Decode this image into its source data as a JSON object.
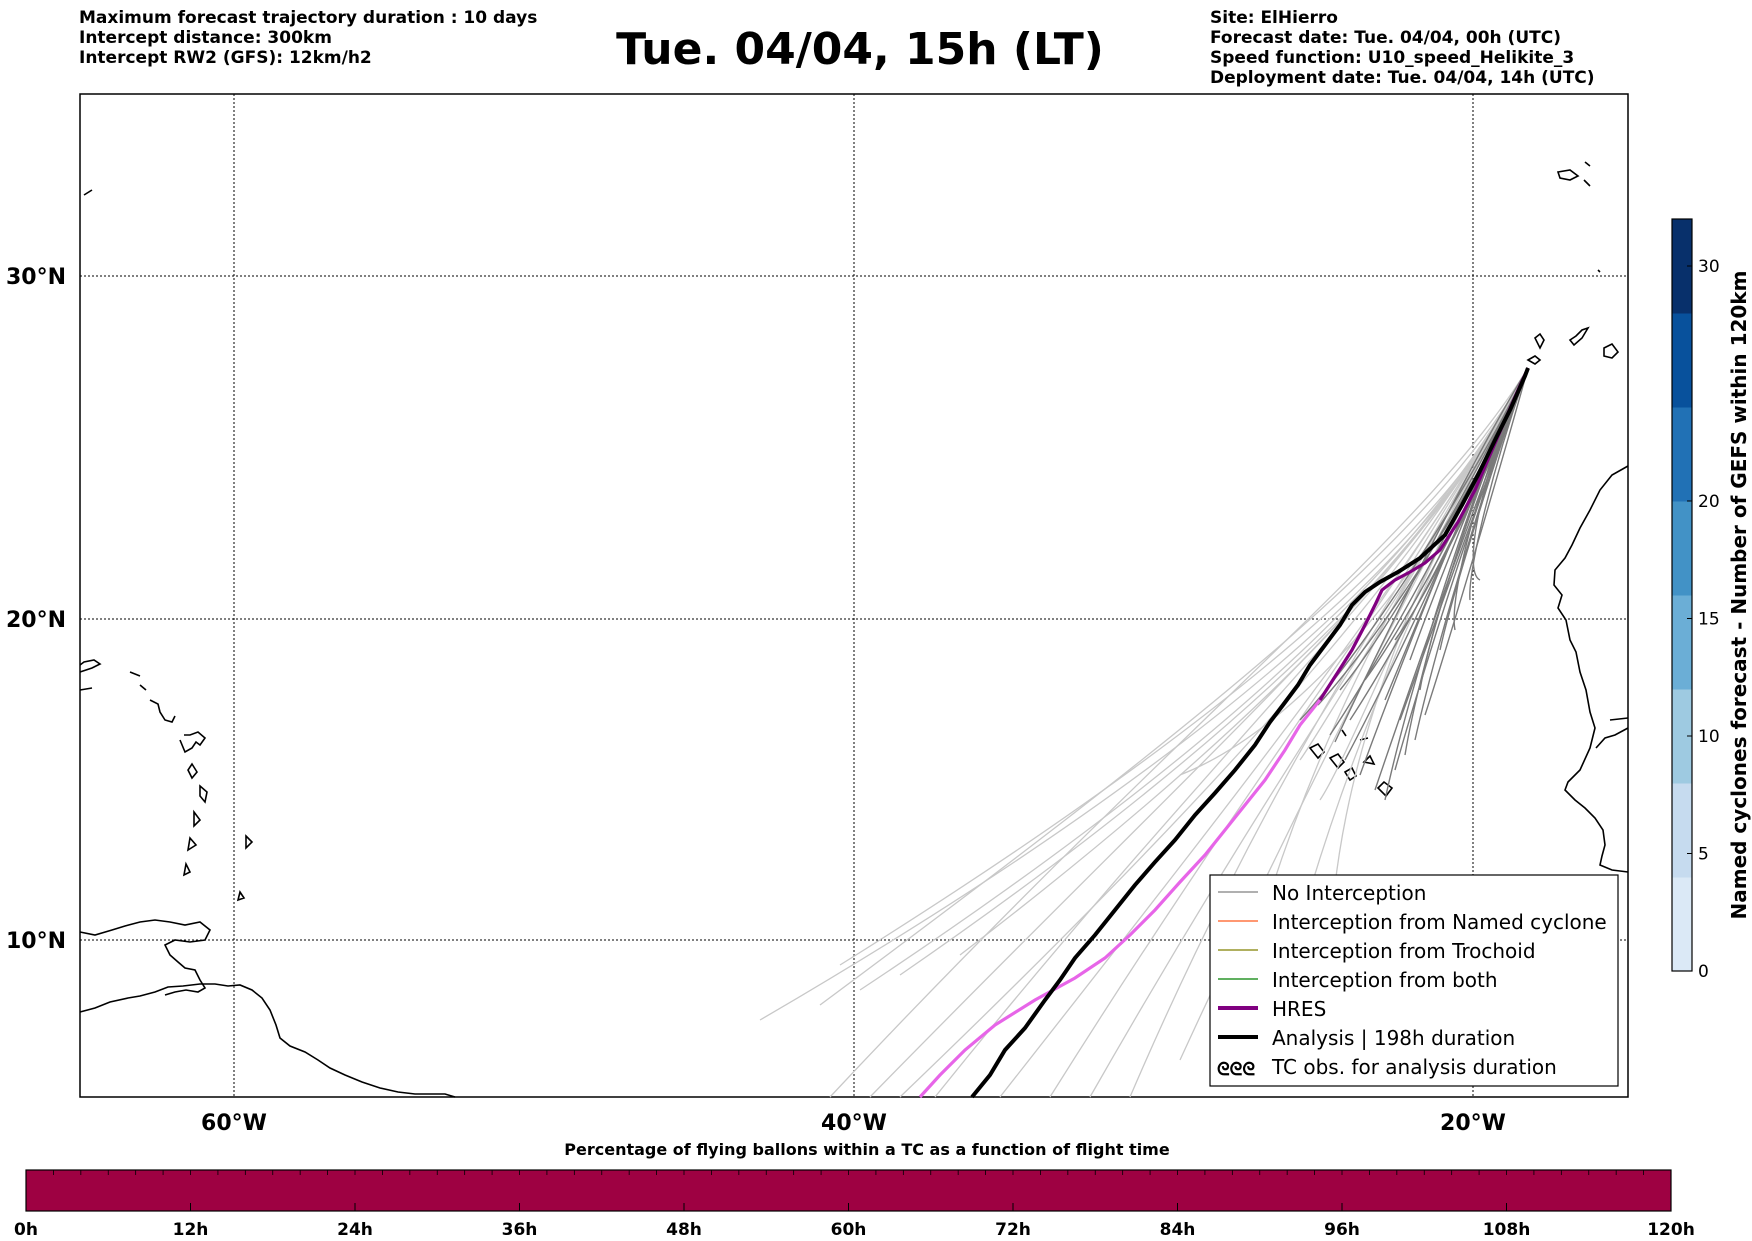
{
  "header": {
    "left_lines": [
      "Maximum forecast trajectory duration : 10 days",
      "Intercept distance: 300km",
      "Intercept RW2 (GFS):  12km/h2"
    ],
    "title": "Tue. 04/04, 15h (LT)",
    "right_lines": [
      "Site: ElHierro",
      "Forecast date: Tue. 04/04, 00h (UTC)",
      "Speed function: U10_speed_Helikite_3",
      "Deployment date: Tue. 04/04, 14h (UTC)"
    ]
  },
  "map": {
    "lat_labels": [
      "30°N",
      "20°N",
      "10°N"
    ],
    "lon_labels": [
      "60°W",
      "40°W",
      "20°W"
    ],
    "lat_range": [
      5,
      35
    ],
    "lon_range": [
      -65,
      -15
    ]
  },
  "legend": {
    "items": [
      {
        "label": "No Interception",
        "color": "#808080"
      },
      {
        "label": "Interception from Named cyclone",
        "color": "#ff5a1e"
      },
      {
        "label": "Interception from Trochoid",
        "color": "#808000"
      },
      {
        "label": "Interception from both",
        "color": "#008000"
      },
      {
        "label": "HRES",
        "color": "#800080"
      },
      {
        "label": "Analysis | 198h duration",
        "color": "#000000"
      },
      {
        "label": "TC obs. for analysis duration",
        "color": "#000000"
      }
    ],
    "tc_symbol": "ᘓᘓᘓ"
  },
  "colorbar_right": {
    "label": "Named cyclones forecast - Number of GEFS within 120km",
    "ticks": [
      "0",
      "5",
      "10",
      "15",
      "20",
      "30"
    ],
    "colors": [
      "#dbe9f6",
      "#c6dbef",
      "#9ecae1",
      "#6baed6",
      "#4292c6",
      "#2171b5",
      "#08519c",
      "#08306b"
    ]
  },
  "colorbar_bottom": {
    "title": "Percentage of flying ballons within a TC as a function of flight time",
    "ticks": [
      "0h",
      "12h",
      "24h",
      "36h",
      "48h",
      "60h",
      "72h",
      "84h",
      "96h",
      "108h",
      "120h"
    ],
    "color": "#9e0142"
  }
}
